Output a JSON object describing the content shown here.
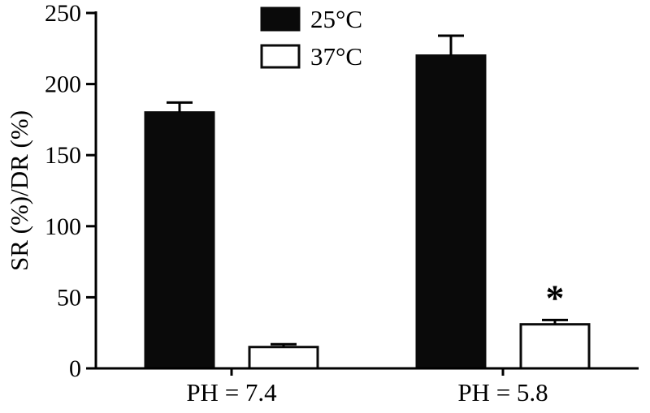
{
  "chart_data": {
    "type": "bar",
    "title": "",
    "xlabel": "",
    "ylabel": "SR (%)/DR (%)",
    "ylim": [
      0,
      250
    ],
    "yticks": [
      0,
      50,
      100,
      150,
      200,
      250
    ],
    "categories": [
      "PH = 7.4",
      "PH = 5.8"
    ],
    "series": [
      {
        "name": "25°C",
        "values": [
          180,
          220
        ],
        "errors": [
          7,
          14
        ],
        "fill": "#0a0a0a",
        "stroke": "#0a0a0a"
      },
      {
        "name": "37°C",
        "values": [
          15,
          31
        ],
        "errors": [
          2,
          3
        ],
        "fill": "#ffffff",
        "stroke": "#0a0a0a"
      }
    ],
    "annotations": [
      {
        "text": "*",
        "series_index": 1,
        "category_index": 1
      }
    ],
    "legend_position": "top-center",
    "grid": false,
    "axis_color": "#000000",
    "background_color": "#ffffff"
  }
}
